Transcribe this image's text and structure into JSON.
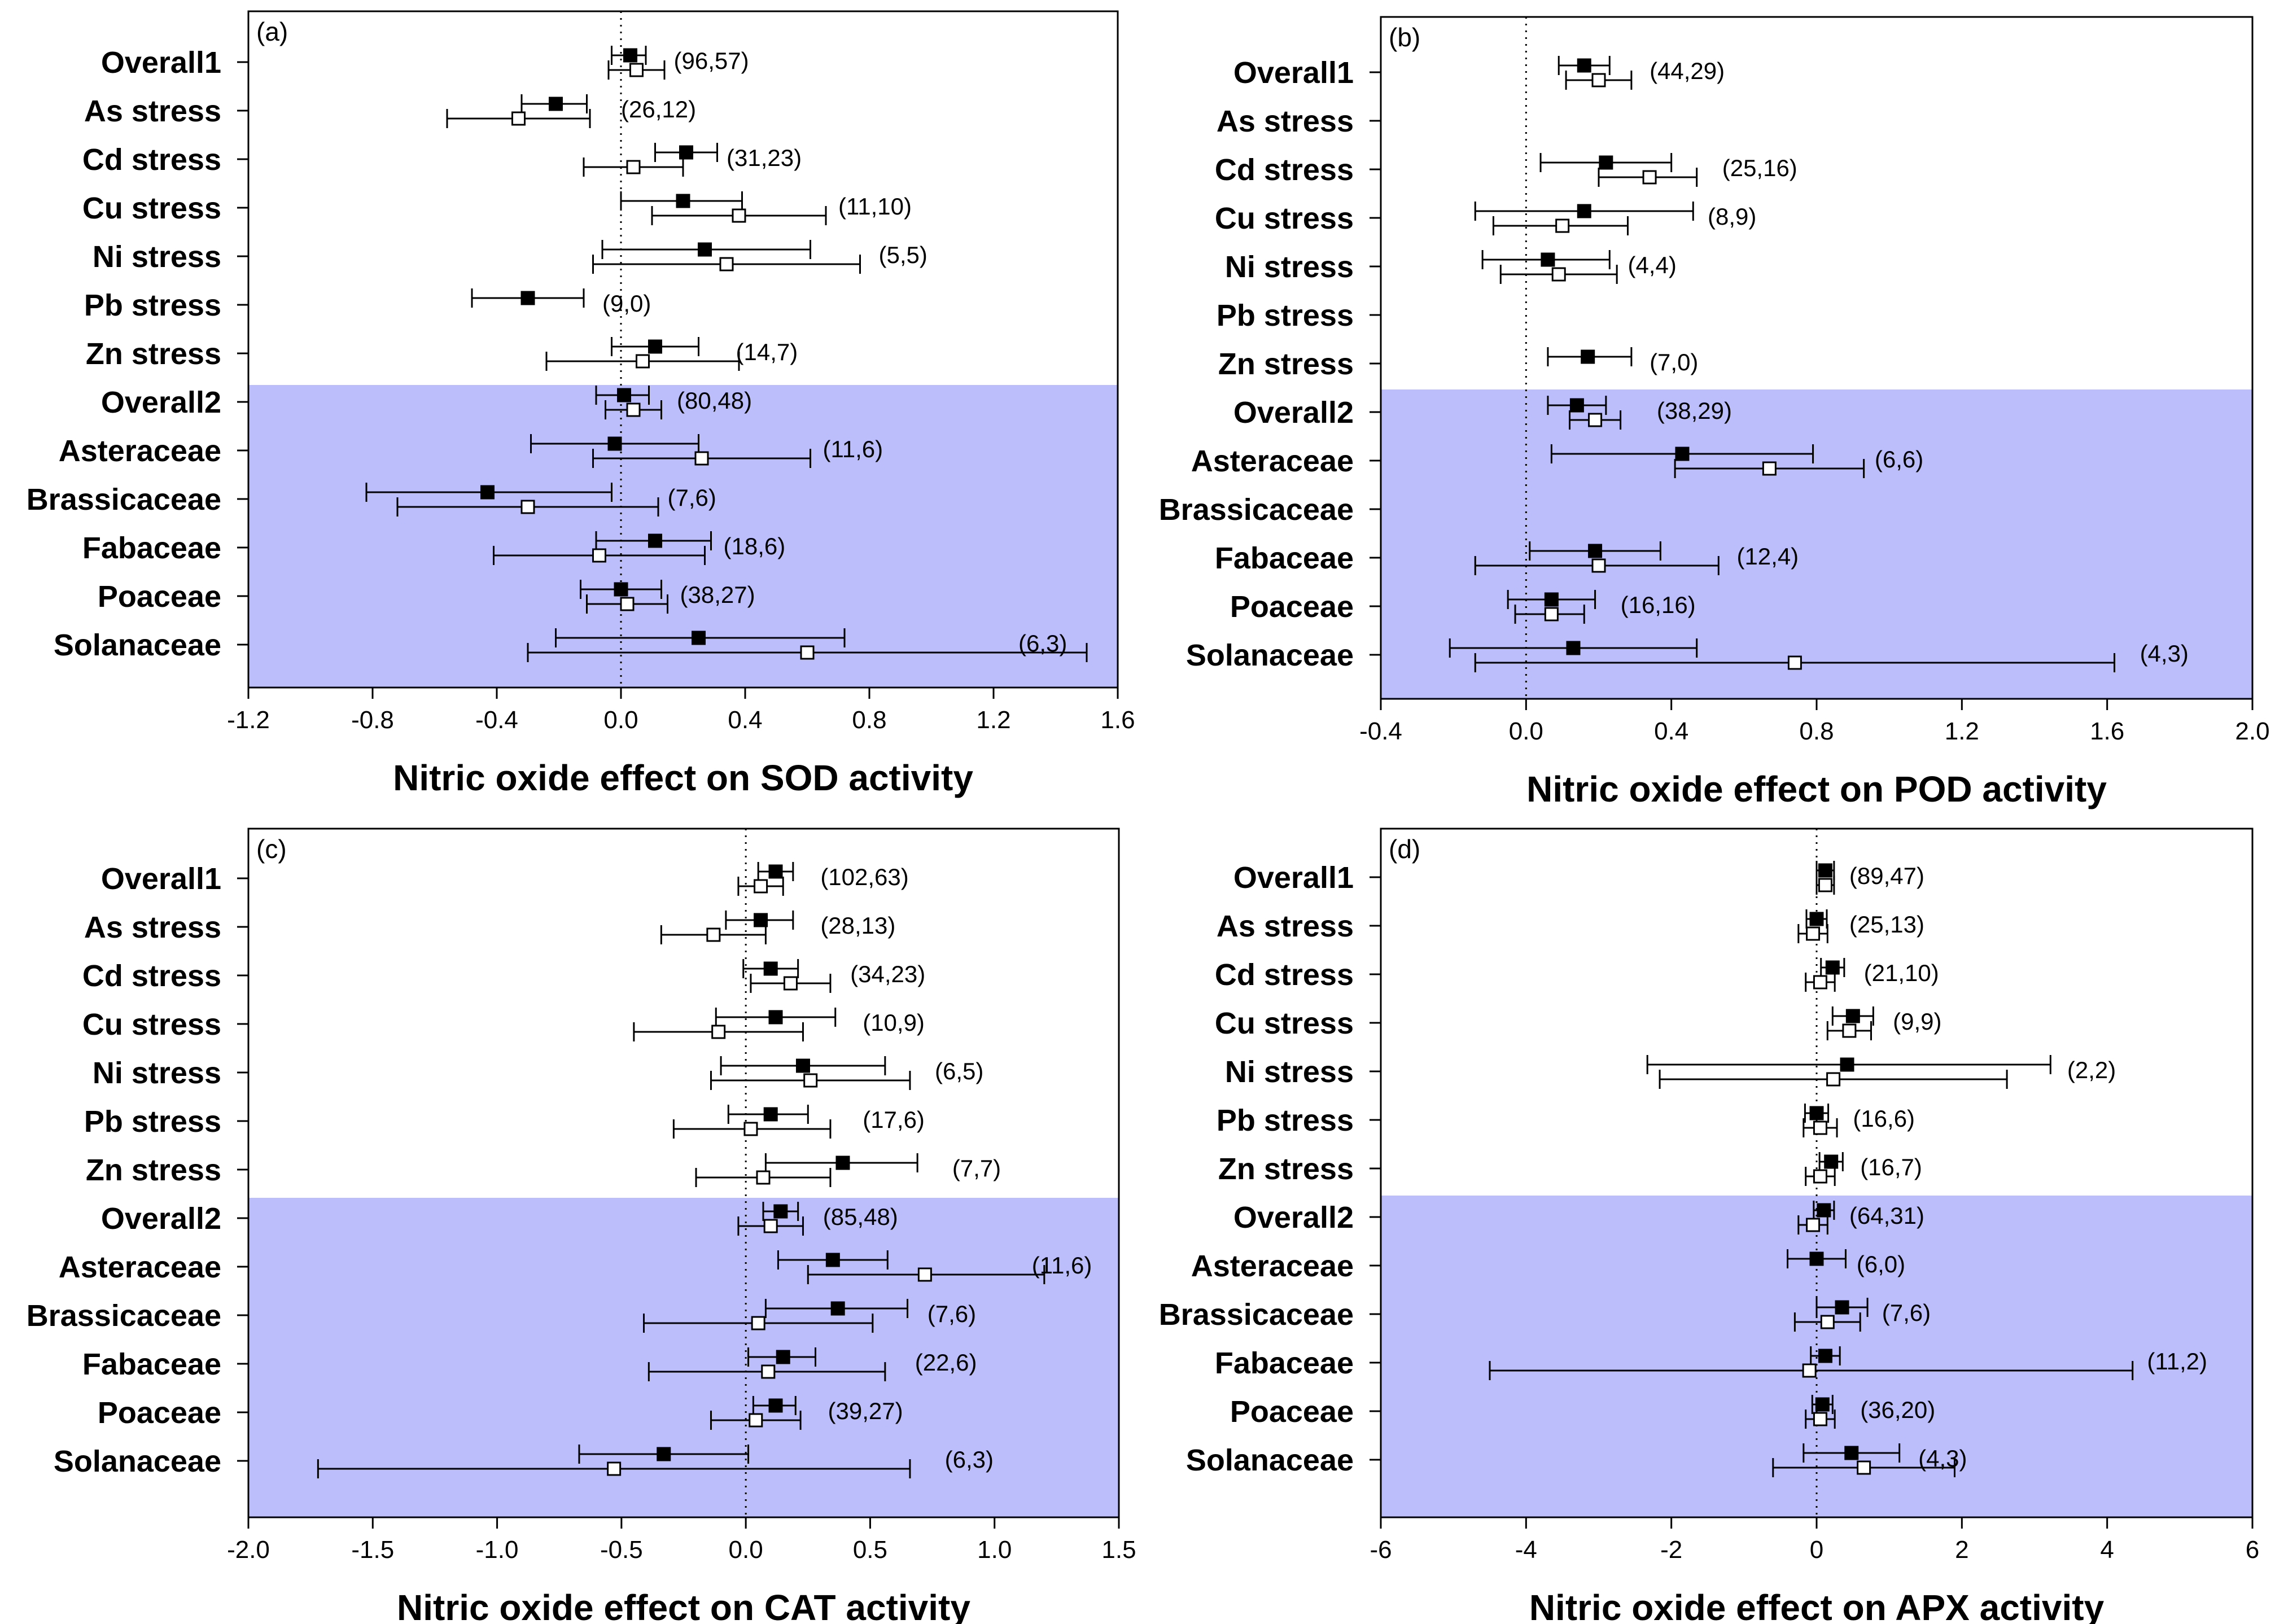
{
  "chart_data": [
    {
      "type": "forest",
      "panel_label": "(a)",
      "xlabel": "Nitric oxide effect on SOD activity",
      "ylabel": "",
      "xlim": [
        -1.2,
        1.6
      ],
      "xticks": [
        -1.2,
        -0.8,
        -0.4,
        0.0,
        0.4,
        0.8,
        1.2,
        1.6
      ],
      "tick_labels": [
        "-1.2",
        "-0.8",
        "-0.4",
        "0.0",
        "0.4",
        "0.8",
        "1.2",
        "1.6"
      ],
      "reference_line": 0,
      "shaded_from": "Overall2",
      "categories": [
        "Overall1",
        "As stress",
        "Cd stress",
        "Cu stress",
        "Ni stress",
        "Pb stress",
        "Zn stress",
        "Overall2",
        "Asteraceae",
        "Brassicaceae",
        "Fabaceae",
        "Poaceae",
        "Solanaceae"
      ],
      "series": [
        {
          "marker": "filled-square",
          "values": [
            {
              "mean": 0.03,
              "lo": -0.03,
              "hi": 0.08
            },
            {
              "mean": -0.21,
              "lo": -0.32,
              "hi": -0.11
            },
            {
              "mean": 0.21,
              "lo": 0.11,
              "hi": 0.31
            },
            {
              "mean": 0.2,
              "lo": 0.0,
              "hi": 0.39
            },
            {
              "mean": 0.27,
              "lo": -0.06,
              "hi": 0.61
            },
            {
              "mean": -0.3,
              "lo": -0.48,
              "hi": -0.12
            },
            {
              "mean": 0.11,
              "lo": -0.03,
              "hi": 0.25
            },
            {
              "mean": 0.01,
              "lo": -0.08,
              "hi": 0.09
            },
            {
              "mean": -0.02,
              "lo": -0.29,
              "hi": 0.25
            },
            {
              "mean": -0.43,
              "lo": -0.82,
              "hi": -0.03
            },
            {
              "mean": 0.11,
              "lo": -0.08,
              "hi": 0.29
            },
            {
              "mean": 0.0,
              "lo": -0.13,
              "hi": 0.13
            },
            {
              "mean": 0.25,
              "lo": -0.21,
              "hi": 0.72
            }
          ]
        },
        {
          "marker": "open-square",
          "values": [
            {
              "mean": 0.05,
              "lo": -0.04,
              "hi": 0.14
            },
            {
              "mean": -0.33,
              "lo": -0.56,
              "hi": -0.1
            },
            {
              "mean": 0.04,
              "lo": -0.12,
              "hi": 0.2
            },
            {
              "mean": 0.38,
              "lo": 0.1,
              "hi": 0.66
            },
            {
              "mean": 0.34,
              "lo": -0.09,
              "hi": 0.77
            },
            null,
            {
              "mean": 0.07,
              "lo": -0.24,
              "hi": 0.38
            },
            {
              "mean": 0.04,
              "lo": -0.05,
              "hi": 0.13
            },
            {
              "mean": 0.26,
              "lo": -0.09,
              "hi": 0.61
            },
            {
              "mean": -0.3,
              "lo": -0.72,
              "hi": 0.12
            },
            {
              "mean": -0.07,
              "lo": -0.41,
              "hi": 0.27
            },
            {
              "mean": 0.02,
              "lo": -0.11,
              "hi": 0.15
            },
            {
              "mean": 0.6,
              "lo": -0.3,
              "hi": 1.5
            }
          ]
        }
      ],
      "annotations": [
        {
          "text": "(96,57)",
          "x": 0.17
        },
        {
          "text": "(26,12)",
          "x": 0.0
        },
        {
          "text": "(31,23)",
          "x": 0.34
        },
        {
          "text": "(11,10)",
          "x": 0.7
        },
        {
          "text": "(5,5)",
          "x": 0.83
        },
        {
          "text": "(9,0)",
          "x": -0.06
        },
        {
          "text": "(14,7)",
          "x": 0.37
        },
        {
          "text": "(80,48)",
          "x": 0.18
        },
        {
          "text": "(11,6)",
          "x": 0.65
        },
        {
          "text": "(7,6)",
          "x": 0.15
        },
        {
          "text": "(18,6)",
          "x": 0.33
        },
        {
          "text": "(38,27)",
          "x": 0.19
        },
        {
          "text": "(6,3)",
          "x": 1.28
        }
      ]
    },
    {
      "type": "forest",
      "panel_label": "(b)",
      "xlabel": "Nitric oxide effect on POD activity",
      "ylabel": "",
      "xlim": [
        -0.4,
        2.0
      ],
      "xticks": [
        -0.4,
        0.0,
        0.4,
        0.8,
        1.2,
        1.6,
        2.0
      ],
      "tick_labels": [
        "-0.4",
        "0.0",
        "0.4",
        "0.8",
        "1.2",
        "1.6",
        "2.0"
      ],
      "reference_line": 0,
      "shaded_from": "Overall2",
      "categories": [
        "Overall1",
        "As stress",
        "Cd stress",
        "Cu stress",
        "Ni stress",
        "Pb stress",
        "Zn stress",
        "Overall2",
        "Asteraceae",
        "Brassicaceae",
        "Fabaceae",
        "Poaceae",
        "Solanaceae"
      ],
      "series": [
        {
          "marker": "filled-square",
          "values": [
            {
              "mean": 0.16,
              "lo": 0.09,
              "hi": 0.23
            },
            null,
            {
              "mean": 0.22,
              "lo": 0.04,
              "hi": 0.4
            },
            {
              "mean": 0.16,
              "lo": -0.14,
              "hi": 0.46
            },
            {
              "mean": 0.06,
              "lo": -0.12,
              "hi": 0.23
            },
            null,
            {
              "mean": 0.17,
              "lo": 0.06,
              "hi": 0.29
            },
            {
              "mean": 0.14,
              "lo": 0.06,
              "hi": 0.22
            },
            {
              "mean": 0.43,
              "lo": 0.07,
              "hi": 0.79
            },
            null,
            {
              "mean": 0.19,
              "lo": 0.01,
              "hi": 0.37
            },
            {
              "mean": 0.07,
              "lo": -0.05,
              "hi": 0.19
            },
            {
              "mean": 0.13,
              "lo": -0.21,
              "hi": 0.47
            }
          ]
        },
        {
          "marker": "open-square",
          "values": [
            {
              "mean": 0.2,
              "lo": 0.11,
              "hi": 0.29
            },
            null,
            {
              "mean": 0.34,
              "lo": 0.2,
              "hi": 0.47
            },
            {
              "mean": 0.1,
              "lo": -0.09,
              "hi": 0.28
            },
            {
              "mean": 0.09,
              "lo": -0.07,
              "hi": 0.25
            },
            null,
            null,
            {
              "mean": 0.19,
              "lo": 0.12,
              "hi": 0.26
            },
            {
              "mean": 0.67,
              "lo": 0.41,
              "hi": 0.93
            },
            null,
            {
              "mean": 0.2,
              "lo": -0.14,
              "hi": 0.53
            },
            {
              "mean": 0.07,
              "lo": -0.03,
              "hi": 0.16
            },
            {
              "mean": 0.74,
              "lo": -0.14,
              "hi": 1.62
            }
          ]
        }
      ],
      "annotations": [
        {
          "text": "(44,29)",
          "x": 0.34
        },
        null,
        {
          "text": "(25,16)",
          "x": 0.54
        },
        {
          "text": "(8,9)",
          "x": 0.5
        },
        {
          "text": "(4,4)",
          "x": 0.28
        },
        null,
        {
          "text": "(7,0)",
          "x": 0.34
        },
        {
          "text": "(38,29)",
          "x": 0.36
        },
        {
          "text": "(6,6)",
          "x": 0.96
        },
        null,
        {
          "text": "(12,4)",
          "x": 0.58
        },
        {
          "text": "(16,16)",
          "x": 0.26
        },
        {
          "text": "(4,3)",
          "x": 1.69
        }
      ]
    },
    {
      "type": "forest",
      "panel_label": "(c)",
      "xlabel": "Nitric oxide effect on CAT activity",
      "ylabel": "",
      "xlim": [
        -2.0,
        1.5
      ],
      "xticks": [
        -2.0,
        -1.5,
        -1.0,
        -0.5,
        0.0,
        0.5,
        1.0,
        1.5
      ],
      "tick_labels": [
        "-2.0",
        "-1.5",
        "-1.0",
        "-0.5",
        "0.0",
        "0.5",
        "1.0",
        "1.5"
      ],
      "reference_line": 0,
      "shaded_from": "Overall2",
      "categories": [
        "Overall1",
        "As stress",
        "Cd stress",
        "Cu stress",
        "Ni stress",
        "Pb stress",
        "Zn stress",
        "Overall2",
        "Asteraceae",
        "Brassicaceae",
        "Fabaceae",
        "Poaceae",
        "Solanaceae"
      ],
      "series": [
        {
          "marker": "filled-square",
          "values": [
            {
              "mean": 0.12,
              "lo": 0.05,
              "hi": 0.19
            },
            {
              "mean": 0.06,
              "lo": -0.08,
              "hi": 0.19
            },
            {
              "mean": 0.1,
              "lo": -0.01,
              "hi": 0.21
            },
            {
              "mean": 0.12,
              "lo": -0.12,
              "hi": 0.36
            },
            {
              "mean": 0.23,
              "lo": -0.1,
              "hi": 0.56
            },
            {
              "mean": 0.1,
              "lo": -0.07,
              "hi": 0.25
            },
            {
              "mean": 0.39,
              "lo": 0.08,
              "hi": 0.69
            },
            {
              "mean": 0.14,
              "lo": 0.07,
              "hi": 0.21
            },
            {
              "mean": 0.35,
              "lo": 0.13,
              "hi": 0.57
            },
            {
              "mean": 0.37,
              "lo": 0.08,
              "hi": 0.65
            },
            {
              "mean": 0.15,
              "lo": 0.01,
              "hi": 0.28
            },
            {
              "mean": 0.12,
              "lo": 0.03,
              "hi": 0.2
            },
            {
              "mean": -0.33,
              "lo": -0.67,
              "hi": 0.01
            }
          ]
        },
        {
          "marker": "open-square",
          "values": [
            {
              "mean": 0.06,
              "lo": -0.03,
              "hi": 0.15
            },
            {
              "mean": -0.13,
              "lo": -0.34,
              "hi": 0.08
            },
            {
              "mean": 0.18,
              "lo": 0.02,
              "hi": 0.34
            },
            {
              "mean": -0.11,
              "lo": -0.45,
              "hi": 0.23
            },
            {
              "mean": 0.26,
              "lo": -0.14,
              "hi": 0.66
            },
            {
              "mean": 0.02,
              "lo": -0.29,
              "hi": 0.34
            },
            {
              "mean": 0.07,
              "lo": -0.2,
              "hi": 0.34
            },
            {
              "mean": 0.1,
              "lo": -0.03,
              "hi": 0.23
            },
            {
              "mean": 0.72,
              "lo": 0.25,
              "hi": 1.2
            },
            {
              "mean": 0.05,
              "lo": -0.41,
              "hi": 0.51
            },
            {
              "mean": 0.09,
              "lo": -0.39,
              "hi": 0.56
            },
            {
              "mean": 0.04,
              "lo": -0.14,
              "hi": 0.22
            },
            {
              "mean": -0.53,
              "lo": -1.72,
              "hi": 0.66
            }
          ]
        }
      ],
      "annotations": [
        {
          "text": "(102,63)",
          "x": 0.3
        },
        {
          "text": "(28,13)",
          "x": 0.3
        },
        {
          "text": "(34,23)",
          "x": 0.42
        },
        {
          "text": "(10,9)",
          "x": 0.47
        },
        {
          "text": "(6,5)",
          "x": 0.76
        },
        {
          "text": "(17,6)",
          "x": 0.47
        },
        {
          "text": "(7,7)",
          "x": 0.83
        },
        {
          "text": "(85,48)",
          "x": 0.31
        },
        {
          "text": "(11,6)",
          "x": 1.15
        },
        {
          "text": "(7,6)",
          "x": 0.73
        },
        {
          "text": "(22,6)",
          "x": 0.68
        },
        {
          "text": "(39,27)",
          "x": 0.33
        },
        {
          "text": "(6,3)",
          "x": 0.8
        }
      ]
    },
    {
      "type": "forest",
      "panel_label": "(d)",
      "xlabel": "Nitric oxide effect on APX activity",
      "ylabel": "",
      "xlim": [
        -6,
        6
      ],
      "xticks": [
        -6,
        -4,
        -2,
        0,
        2,
        4,
        6
      ],
      "tick_labels": [
        "-6",
        "-4",
        "-2",
        "0",
        "2",
        "4",
        "6"
      ],
      "reference_line": 0,
      "shaded_from": "Overall2",
      "categories": [
        "Overall1",
        "As stress",
        "Cd stress",
        "Cu stress",
        "Ni stress",
        "Pb stress",
        "Zn stress",
        "Overall2",
        "Asteraceae",
        "Brassicaceae",
        "Fabaceae",
        "Poaceae",
        "Solanaceae"
      ],
      "series": [
        {
          "marker": "filled-square",
          "values": [
            {
              "mean": 0.12,
              "lo": 0.0,
              "hi": 0.24
            },
            {
              "mean": 0.0,
              "lo": -0.14,
              "hi": 0.14
            },
            {
              "mean": 0.22,
              "lo": 0.06,
              "hi": 0.38
            },
            {
              "mean": 0.5,
              "lo": 0.22,
              "hi": 0.78
            },
            {
              "mean": 0.42,
              "lo": -2.33,
              "hi": 3.22
            },
            {
              "mean": 0.0,
              "lo": -0.16,
              "hi": 0.16
            },
            {
              "mean": 0.2,
              "lo": 0.04,
              "hi": 0.36
            },
            {
              "mean": 0.1,
              "lo": -0.04,
              "hi": 0.24
            },
            {
              "mean": 0.0,
              "lo": -0.4,
              "hi": 0.4
            },
            {
              "mean": 0.35,
              "lo": 0.0,
              "hi": 0.7
            },
            {
              "mean": 0.12,
              "lo": -0.08,
              "hi": 0.32
            },
            {
              "mean": 0.08,
              "lo": -0.06,
              "hi": 0.22
            },
            {
              "mean": 0.48,
              "lo": -0.18,
              "hi": 1.14
            }
          ]
        },
        {
          "marker": "open-square",
          "values": [
            {
              "mean": 0.12,
              "lo": 0.0,
              "hi": 0.24
            },
            {
              "mean": -0.05,
              "lo": -0.25,
              "hi": 0.15
            },
            {
              "mean": 0.05,
              "lo": -0.15,
              "hi": 0.25
            },
            {
              "mean": 0.45,
              "lo": 0.15,
              "hi": 0.75
            },
            {
              "mean": 0.23,
              "lo": -2.16,
              "hi": 2.62
            },
            {
              "mean": 0.05,
              "lo": -0.18,
              "hi": 0.28
            },
            {
              "mean": 0.05,
              "lo": -0.15,
              "hi": 0.25
            },
            {
              "mean": -0.05,
              "lo": -0.25,
              "hi": 0.15
            },
            null,
            {
              "mean": 0.15,
              "lo": -0.3,
              "hi": 0.6
            },
            {
              "mean": -0.1,
              "lo": -4.5,
              "hi": 4.35
            },
            {
              "mean": 0.05,
              "lo": -0.15,
              "hi": 0.25
            },
            {
              "mean": 0.65,
              "lo": -0.6,
              "hi": 1.9
            }
          ]
        }
      ],
      "annotations": [
        {
          "text": "(89,47)",
          "x": 0.45
        },
        {
          "text": "(25,13)",
          "x": 0.45
        },
        {
          "text": "(21,10)",
          "x": 0.65
        },
        {
          "text": "(9,9)",
          "x": 1.05
        },
        {
          "text": "(2,2)",
          "x": 3.45
        },
        {
          "text": "(16,6)",
          "x": 0.5
        },
        {
          "text": "(16,7)",
          "x": 0.6
        },
        {
          "text": "(64,31)",
          "x": 0.45
        },
        {
          "text": "(6,0)",
          "x": 0.55
        },
        {
          "text": "(7,6)",
          "x": 0.9
        },
        {
          "text": "(11,2)",
          "x": 4.55
        },
        {
          "text": "(36,20)",
          "x": 0.6
        },
        {
          "text": "(4,3)",
          "x": 1.4
        }
      ]
    }
  ],
  "colors": {
    "shading": "#bcbdfb",
    "axis": "#000000",
    "filled_marker": "#000000",
    "open_marker_fill": "#ffffff"
  }
}
